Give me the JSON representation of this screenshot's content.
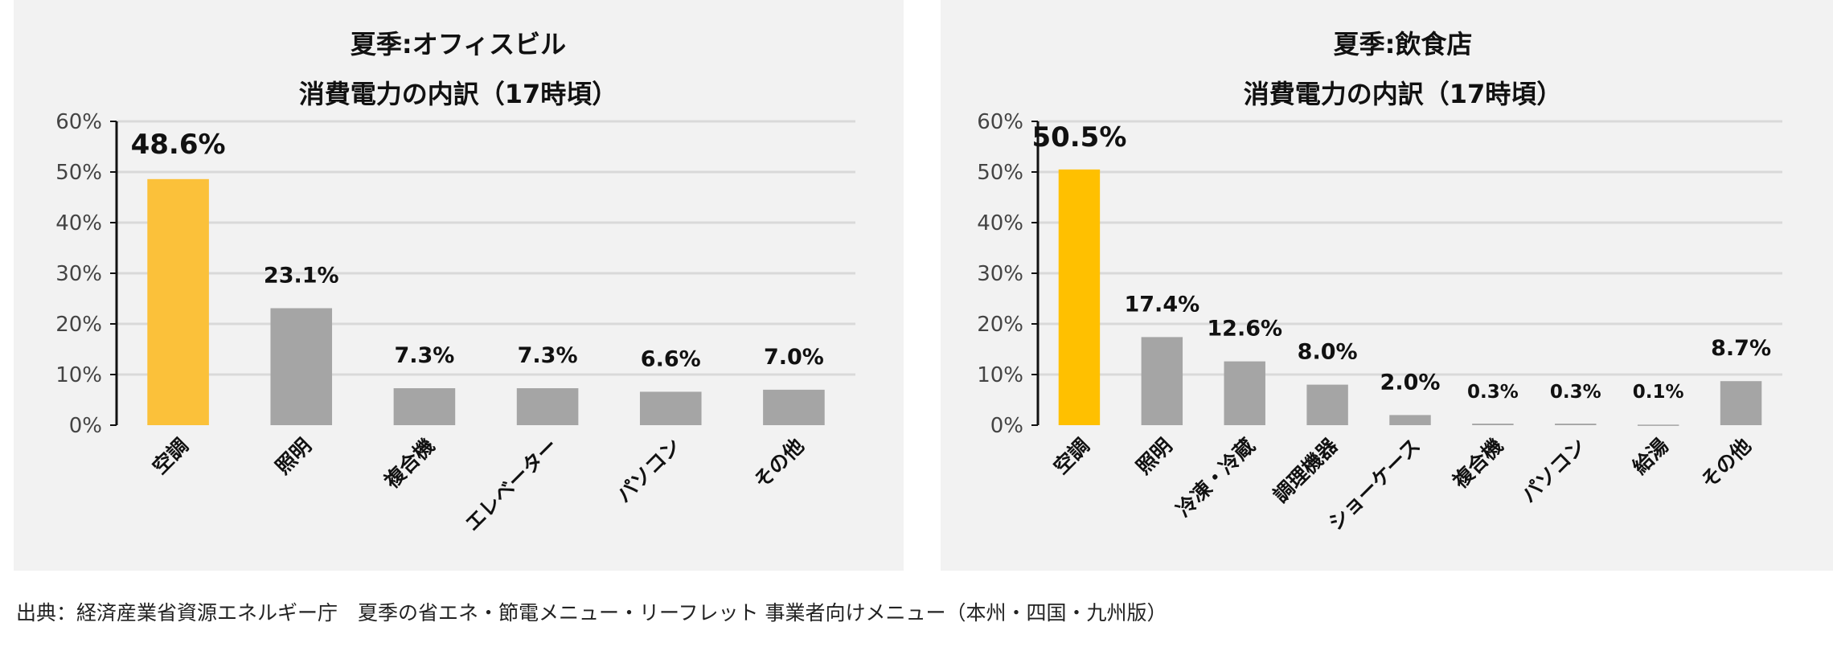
{
  "chart_data": [
    {
      "type": "bar",
      "title": "夏季:オフィスビル",
      "subtitle": "消費電力の内訳（17時頃）",
      "categories": [
        "空調",
        "照明",
        "複合機",
        "エレベーター",
        "パソコン",
        "その他"
      ],
      "values": [
        48.6,
        23.1,
        7.3,
        7.3,
        6.6,
        7.0
      ],
      "data_labels": [
        "48.6%",
        "23.1%",
        "7.3%",
        "7.3%",
        "6.6%",
        "7.0%"
      ],
      "ylim": [
        0,
        60
      ],
      "yticks": [
        "0%",
        "10%",
        "20%",
        "30%",
        "40%",
        "50%",
        "60%"
      ],
      "grid": true,
      "highlight_color": "#FBC13A",
      "bar_color": "#A5A5A5"
    },
    {
      "type": "bar",
      "title": "夏季:飲食店",
      "subtitle": "消費電力の内訳（17時頃）",
      "categories": [
        "空調",
        "照明",
        "冷凍・冷蔵",
        "調理機器",
        "ショーケース",
        "複合機",
        "パソコン",
        "給湯",
        "その他"
      ],
      "values": [
        50.5,
        17.4,
        12.6,
        8.0,
        2.0,
        0.3,
        0.3,
        0.1,
        8.7
      ],
      "data_labels": [
        "50.5%",
        "17.4%",
        "12.6%",
        "8.0%",
        "2.0%",
        "0.3%",
        "0.3%",
        "0.1%",
        "8.7%"
      ],
      "ylim": [
        0,
        60
      ],
      "yticks": [
        "0%",
        "10%",
        "20%",
        "30%",
        "40%",
        "50%",
        "60%"
      ],
      "grid": true,
      "highlight_color": "#FFC000",
      "bar_color": "#A5A5A5"
    }
  ],
  "footer": {
    "source": "出典：経済産業省資源エネルギー庁　夏季の省エネ・節電メニュー・リーフレット 事業者向けメニュー（本州・四国・九州版）"
  }
}
